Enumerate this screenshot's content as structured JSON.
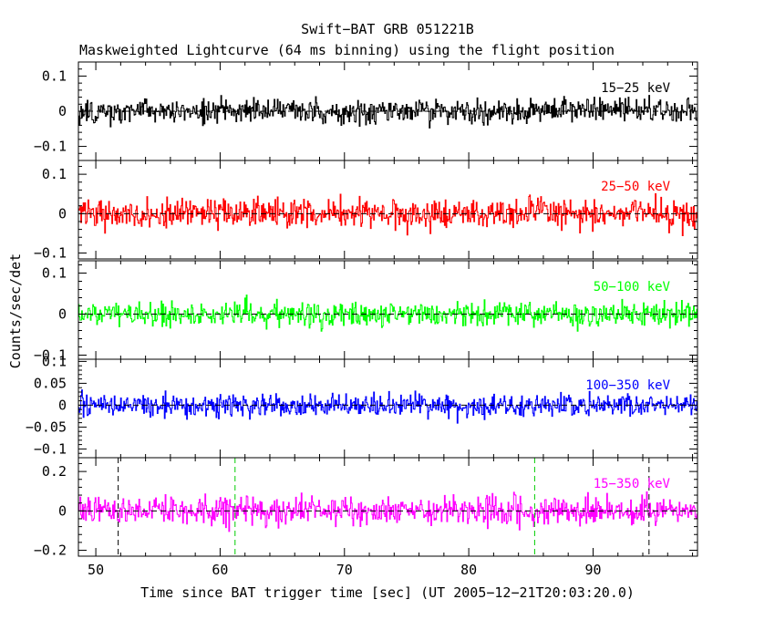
{
  "chart_data": {
    "type": "line",
    "title": "Swift−BAT GRB 051221B",
    "subtitle": "Maskweighted Lightcurve (64 ms binning) using the flight position",
    "xlabel": "Time since BAT trigger time [sec] (UT 2005−12−21T20:03:20.0)",
    "ylabel": "Counts/sec/det",
    "xlim": [
      48.6,
      98.4
    ],
    "x_ticks": [
      50,
      60,
      70,
      80,
      90
    ],
    "x_tick_labels": [
      "50",
      "60",
      "70",
      "80",
      "90"
    ],
    "bin_seconds": 0.064,
    "grid": false,
    "panels": [
      {
        "name": "15−25 keV",
        "color": "#000000",
        "ylim": [
          -0.14,
          0.14
        ],
        "y_ticks": [
          -0.1,
          0,
          0.1
        ],
        "y_tick_labels": [
          "−0.1",
          "0",
          "0.1"
        ],
        "noise_sigma": 0.03
      },
      {
        "name": "25−50 keV",
        "color": "#ff0000",
        "ylim": [
          -0.115,
          0.135
        ],
        "y_ticks": [
          -0.1,
          0,
          0.1
        ],
        "y_tick_labels": [
          "−0.1",
          "0",
          "0.1"
        ],
        "noise_sigma": 0.033
      },
      {
        "name": "50−100 keV",
        "color": "#00ff00",
        "ylim": [
          -0.11,
          0.13
        ],
        "y_ticks": [
          -0.1,
          0,
          0.1
        ],
        "y_tick_labels": [
          "−0.1",
          "0",
          "0.1"
        ],
        "noise_sigma": 0.026
      },
      {
        "name": "100−350 keV",
        "color": "#0000ff",
        "ylim": [
          -0.12,
          0.105
        ],
        "y_ticks": [
          -0.1,
          -0.05,
          0,
          0.05,
          0.1
        ],
        "y_tick_labels": [
          "−0.1",
          "−0.05",
          "0",
          "0.05",
          "0.1"
        ],
        "noise_sigma": 0.022
      },
      {
        "name": "15−350 keV",
        "color": "#ff00ff",
        "ylim": [
          -0.23,
          0.27
        ],
        "y_ticks": [
          -0.2,
          0,
          0.2
        ],
        "y_tick_labels": [
          "−0.2",
          "0",
          "0.2"
        ],
        "noise_sigma": 0.065,
        "vlines": [
          {
            "x": 51.8,
            "color": "#000000"
          },
          {
            "x": 61.2,
            "color": "#00cc00"
          },
          {
            "x": 85.3,
            "color": "#00cc00"
          },
          {
            "x": 94.5,
            "color": "#000000"
          }
        ]
      }
    ]
  }
}
